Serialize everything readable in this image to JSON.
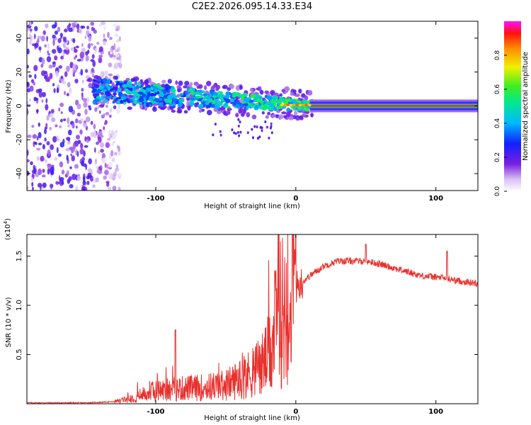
{
  "chart_data": [
    {
      "type": "heatmap",
      "title": "C2E2.2026.095.14.33.E34",
      "xlabel": "Height of straight line (km)",
      "ylabel": "Frequency (Hz)",
      "xlim": [
        -192,
        130
      ],
      "ylim": [
        -50,
        50
      ],
      "xticks": [
        -100,
        0,
        100
      ],
      "xtick_labels": [
        "-100",
        "0",
        "100"
      ],
      "yticks": [
        -40,
        -20,
        0,
        20,
        40
      ],
      "ytick_labels": [
        "-40",
        "-20",
        "0",
        "20",
        "40"
      ],
      "colorbar": {
        "label": "Normalized spectral amplitude",
        "range": [
          0,
          1
        ],
        "ticks": [
          0.0,
          0.2,
          0.4,
          0.6,
          0.8
        ],
        "tick_labels": [
          "0.0",
          "0.2",
          "0.4",
          "0.6",
          "0.8"
        ]
      },
      "regions": [
        {
          "name": "noise",
          "x": [
            -192,
            -125
          ],
          "freq_range": [
            -50,
            50
          ],
          "amplitude": 0.15
        },
        {
          "name": "signal-band",
          "x": [
            -145,
            12
          ],
          "freq_center_start": 9,
          "freq_center_end": 0,
          "half_width": 7,
          "amplitude": 0.35
        },
        {
          "name": "carrier",
          "x": [
            12,
            130
          ],
          "freq_center": 0,
          "amplitude": 0.95
        }
      ]
    },
    {
      "type": "line",
      "title": "",
      "xlabel": "Height of straight line (km)",
      "ylabel": "SNR (10 * v/v)",
      "y_multiplier": "(x10",
      "y_multiplier_exp": "4",
      "y_multiplier_close": ")",
      "xlim": [
        -192,
        130
      ],
      "ylim": [
        0,
        1.72
      ],
      "xticks": [
        -100,
        0,
        100
      ],
      "xtick_labels": [
        "-100",
        "0",
        "100"
      ],
      "yticks": [
        0.5,
        1.0,
        1.5
      ],
      "ytick_labels": [
        "0.5",
        "1.0",
        "1.5"
      ],
      "series": [
        {
          "name": "SNR",
          "color": "#e8302c",
          "envelope_x": [
            -192,
            -150,
            -130,
            -120,
            -100,
            -85,
            -70,
            -50,
            -35,
            -25,
            -18,
            -14,
            -10,
            -5,
            0,
            10,
            20,
            30,
            40,
            50,
            60,
            75,
            90,
            105,
            115,
            130
          ],
          "envelope_y": [
            0.01,
            0.01,
            0.02,
            0.05,
            0.14,
            0.16,
            0.17,
            0.2,
            0.3,
            0.4,
            0.55,
            0.8,
            1.0,
            1.1,
            1.18,
            1.3,
            1.4,
            1.45,
            1.45,
            1.45,
            1.42,
            1.36,
            1.3,
            1.28,
            1.25,
            1.22
          ],
          "spikes_x": [
            -86,
            -15,
            -12,
            50,
            108
          ],
          "spikes_y": [
            0.75,
            1.35,
            1.72,
            1.62,
            1.55
          ]
        }
      ]
    }
  ]
}
